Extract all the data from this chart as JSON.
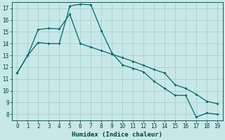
{
  "title": "",
  "xlabel": "Humidex (Indice chaleur)",
  "bg_color": "#c8e8e8",
  "grid_color": "#a8cece",
  "line_color": "#006868",
  "line1_x": [
    0,
    1,
    2,
    3,
    4,
    5,
    6,
    7,
    8,
    9,
    10,
    11,
    12,
    13,
    14,
    15,
    16,
    17,
    18,
    19
  ],
  "line1_y": [
    11.5,
    13.0,
    14.1,
    14.0,
    14.0,
    17.2,
    17.35,
    17.3,
    15.1,
    13.2,
    12.2,
    11.9,
    11.6,
    10.8,
    10.2,
    9.6,
    9.6,
    7.75,
    8.1,
    8.0
  ],
  "line2_x": [
    0,
    1,
    2,
    3,
    4,
    5,
    6,
    7,
    8,
    9,
    10,
    11,
    12,
    13,
    14,
    15,
    16,
    17,
    18,
    19
  ],
  "line2_y": [
    11.5,
    13.0,
    15.2,
    15.3,
    15.25,
    16.5,
    14.0,
    13.7,
    13.4,
    13.1,
    12.8,
    12.5,
    12.15,
    11.8,
    11.5,
    10.5,
    10.2,
    9.7,
    9.1,
    8.9
  ],
  "xlim": [
    -0.5,
    19.5
  ],
  "ylim": [
    7.5,
    17.5
  ],
  "yticks": [
    8,
    9,
    10,
    11,
    12,
    13,
    14,
    15,
    16,
    17
  ],
  "xticks": [
    0,
    1,
    2,
    3,
    4,
    5,
    6,
    7,
    8,
    9,
    10,
    11,
    12,
    13,
    14,
    15,
    16,
    17,
    18,
    19
  ]
}
